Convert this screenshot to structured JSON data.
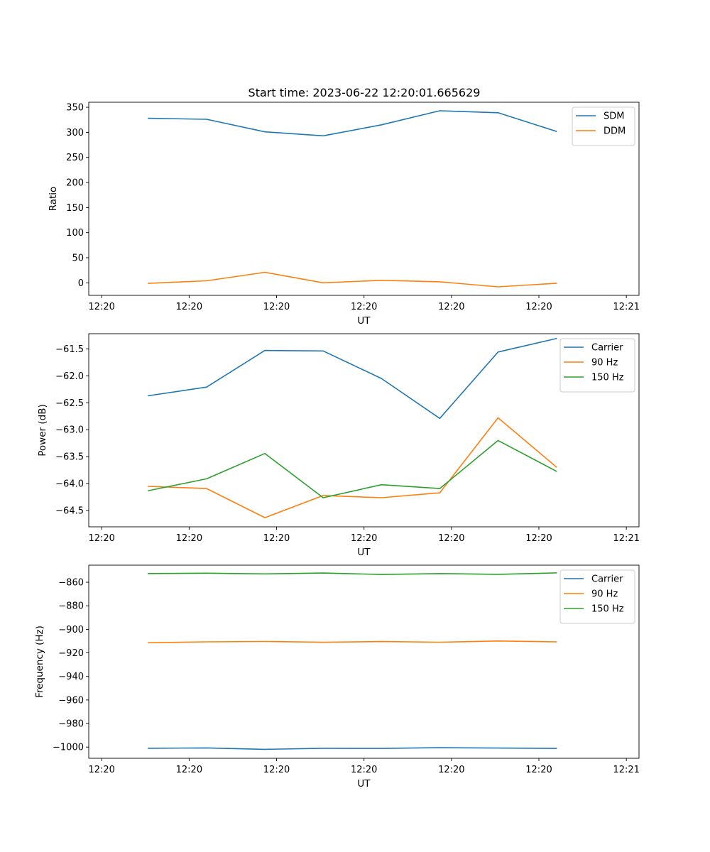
{
  "figure": {
    "title": "Start time: 2023-06-22 12:20:01.665629"
  },
  "chart_data": [
    {
      "type": "line",
      "title": "Start time: 2023-06-22 12:20:01.665629",
      "xlabel": "UT",
      "ylabel": "Ratio",
      "xtick_labels": [
        "12:20",
        "12:20",
        "12:20",
        "12:20",
        "12:20",
        "12:20",
        "12:21"
      ],
      "x_seconds_after_12_20": [
        8,
        18,
        28,
        38,
        48,
        58,
        68,
        78
      ],
      "xlim": [
        0,
        90
      ],
      "ylim": [
        -25,
        360
      ],
      "yticks": [
        0,
        50,
        100,
        150,
        200,
        250,
        300,
        350
      ],
      "ytick_labels": [
        "0",
        "50",
        "100",
        "150",
        "200",
        "250",
        "300",
        "350"
      ],
      "legend_position": "upper right",
      "grid": false,
      "series": [
        {
          "name": "SDM",
          "color": "#1f77b4",
          "values": [
            328,
            326,
            301,
            293,
            315,
            343,
            339,
            302
          ]
        },
        {
          "name": "DDM",
          "color": "#ff7f0e",
          "values": [
            -1,
            4,
            21,
            0,
            5,
            2,
            -8,
            -1
          ]
        }
      ]
    },
    {
      "type": "line",
      "title": "",
      "xlabel": "UT",
      "ylabel": "Power (dB)",
      "xtick_labels": [
        "12:20",
        "12:20",
        "12:20",
        "12:20",
        "12:20",
        "12:20",
        "12:21"
      ],
      "x_seconds_after_12_20": [
        8,
        18,
        28,
        38,
        48,
        58,
        68,
        78
      ],
      "xlim": [
        0,
        90
      ],
      "ylim": [
        -64.8,
        -61.22
      ],
      "yticks": [
        -64.5,
        -64.0,
        -63.5,
        -63.0,
        -62.5,
        -62.0,
        -61.5
      ],
      "ytick_labels": [
        "−64.5",
        "−64.0",
        "−63.5",
        "−63.0",
        "−62.5",
        "−62.0",
        "−61.5"
      ],
      "legend_position": "upper right",
      "grid": false,
      "series": [
        {
          "name": "Carrier",
          "color": "#1f77b4",
          "values": [
            -62.37,
            -62.21,
            -61.53,
            -61.54,
            -62.05,
            -62.79,
            -61.56,
            -61.31
          ]
        },
        {
          "name": "90 Hz",
          "color": "#ff7f0e",
          "values": [
            -64.05,
            -64.09,
            -64.63,
            -64.22,
            -64.26,
            -64.17,
            -62.78,
            -63.69
          ]
        },
        {
          "name": "150 Hz",
          "color": "#2ca02c",
          "values": [
            -64.13,
            -63.91,
            -63.44,
            -64.26,
            -64.02,
            -64.09,
            -63.2,
            -63.77
          ]
        }
      ]
    },
    {
      "type": "line",
      "title": "",
      "xlabel": "UT",
      "ylabel": "Frequency (Hz)",
      "xtick_labels": [
        "12:20",
        "12:20",
        "12:20",
        "12:20",
        "12:20",
        "12:20",
        "12:21"
      ],
      "x_seconds_after_12_20": [
        8,
        18,
        28,
        38,
        48,
        58,
        68,
        78
      ],
      "xlim": [
        0,
        90
      ],
      "ylim": [
        -1009.5,
        -845.5
      ],
      "yticks": [
        -1000,
        -980,
        -960,
        -940,
        -920,
        -900,
        -880,
        -860
      ],
      "ytick_labels": [
        "−1000",
        "−980",
        "−960",
        "−940",
        "−920",
        "−900",
        "−880",
        "−860"
      ],
      "legend_position": "upper right",
      "grid": false,
      "series": [
        {
          "name": "Carrier",
          "color": "#1f77b4",
          "values": [
            -1001,
            -1000.7,
            -1001.9,
            -1001,
            -1001.1,
            -1000.5,
            -1000.8,
            -1001.1
          ]
        },
        {
          "name": "90 Hz",
          "color": "#ff7f0e",
          "values": [
            -911.4,
            -910.6,
            -910.3,
            -911,
            -910.4,
            -910.9,
            -909.9,
            -910.6
          ]
        },
        {
          "name": "150 Hz",
          "color": "#2ca02c",
          "values": [
            -852.6,
            -852.3,
            -852.9,
            -852.2,
            -853.4,
            -852.7,
            -853.3,
            -852.1
          ]
        }
      ]
    }
  ]
}
